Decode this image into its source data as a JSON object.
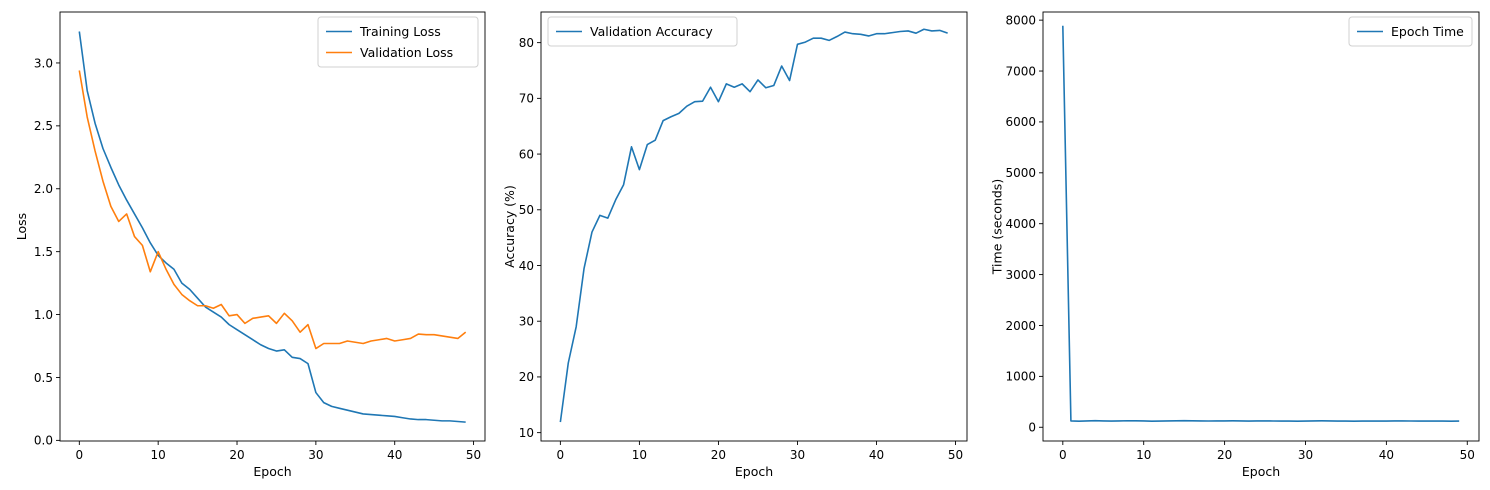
{
  "chart_data": [
    {
      "type": "line",
      "title": "",
      "xlabel": "Epoch",
      "ylabel": "Loss",
      "xlim": [
        -2.45,
        51.45
      ],
      "ylim": [
        -0.005,
        3.405
      ],
      "xticks": [
        0,
        10,
        20,
        30,
        40,
        50
      ],
      "xtick_labels": [
        "0",
        "10",
        "20",
        "30",
        "40",
        "50"
      ],
      "yticks": [
        0.0,
        0.5,
        1.0,
        1.5,
        2.0,
        2.5,
        3.0
      ],
      "ytick_labels": [
        "0.0",
        "0.5",
        "1.0",
        "1.5",
        "2.0",
        "2.5",
        "3.0"
      ],
      "grid": false,
      "legend": "top-right",
      "series": [
        {
          "name": "Training Loss",
          "color": "#1f77b4",
          "x": [
            0,
            1,
            2,
            3,
            4,
            5,
            6,
            7,
            8,
            9,
            10,
            11,
            12,
            13,
            14,
            15,
            16,
            17,
            18,
            19,
            20,
            21,
            22,
            23,
            24,
            25,
            26,
            27,
            28,
            29,
            30,
            31,
            32,
            33,
            34,
            35,
            36,
            37,
            38,
            39,
            40,
            41,
            42,
            43,
            44,
            45,
            46,
            47,
            48,
            49
          ],
          "y": [
            3.25,
            2.78,
            2.52,
            2.32,
            2.17,
            2.03,
            1.91,
            1.8,
            1.69,
            1.57,
            1.47,
            1.41,
            1.36,
            1.25,
            1.2,
            1.13,
            1.06,
            1.02,
            0.98,
            0.92,
            0.88,
            0.84,
            0.8,
            0.76,
            0.73,
            0.71,
            0.72,
            0.66,
            0.65,
            0.61,
            0.38,
            0.3,
            0.27,
            0.255,
            0.24,
            0.225,
            0.21,
            0.205,
            0.2,
            0.195,
            0.19,
            0.18,
            0.17,
            0.165,
            0.165,
            0.16,
            0.155,
            0.155,
            0.15,
            0.145
          ]
        },
        {
          "name": "Validation Loss",
          "color": "#ff7f0e",
          "x": [
            0,
            1,
            2,
            3,
            4,
            5,
            6,
            7,
            8,
            9,
            10,
            11,
            12,
            13,
            14,
            15,
            16,
            17,
            18,
            19,
            20,
            21,
            22,
            23,
            24,
            25,
            26,
            27,
            28,
            29,
            30,
            31,
            32,
            33,
            34,
            35,
            36,
            37,
            38,
            39,
            40,
            41,
            42,
            43,
            44,
            45,
            46,
            47,
            48,
            49
          ],
          "y": [
            2.94,
            2.57,
            2.3,
            2.06,
            1.86,
            1.74,
            1.8,
            1.62,
            1.55,
            1.34,
            1.5,
            1.36,
            1.24,
            1.16,
            1.11,
            1.07,
            1.07,
            1.05,
            1.08,
            0.99,
            1.0,
            0.93,
            0.97,
            0.98,
            0.99,
            0.93,
            1.01,
            0.95,
            0.86,
            0.92,
            0.73,
            0.77,
            0.77,
            0.77,
            0.79,
            0.78,
            0.77,
            0.79,
            0.8,
            0.81,
            0.79,
            0.8,
            0.81,
            0.845,
            0.84,
            0.84,
            0.83,
            0.82,
            0.81,
            0.86
          ]
        }
      ]
    },
    {
      "type": "line",
      "title": "",
      "xlabel": "Epoch",
      "ylabel": "Accuracy (%)",
      "xlim": [
        -2.45,
        51.45
      ],
      "ylim": [
        8.5,
        85.5
      ],
      "xticks": [
        0,
        10,
        20,
        30,
        40,
        50
      ],
      "xtick_labels": [
        "0",
        "10",
        "20",
        "30",
        "40",
        "50"
      ],
      "yticks": [
        10,
        20,
        30,
        40,
        50,
        60,
        70,
        80
      ],
      "ytick_labels": [
        "10",
        "20",
        "30",
        "40",
        "50",
        "60",
        "70",
        "80"
      ],
      "grid": false,
      "legend": "top-left",
      "series": [
        {
          "name": "Validation Accuracy",
          "color": "#1f77b4",
          "x": [
            0,
            1,
            2,
            3,
            4,
            5,
            6,
            7,
            8,
            9,
            10,
            11,
            12,
            13,
            14,
            15,
            16,
            17,
            18,
            19,
            20,
            21,
            22,
            23,
            24,
            25,
            26,
            27,
            28,
            29,
            30,
            31,
            32,
            33,
            34,
            35,
            36,
            37,
            38,
            39,
            40,
            41,
            42,
            43,
            44,
            45,
            46,
            47,
            48,
            49
          ],
          "y": [
            11.9,
            22.5,
            29,
            39.5,
            46,
            49,
            48.5,
            51.8,
            54.5,
            61.3,
            57.2,
            61.7,
            62.5,
            66,
            66.7,
            67.3,
            68.6,
            69.4,
            69.5,
            72,
            69.4,
            72.6,
            72,
            72.6,
            71.2,
            73.3,
            71.9,
            72.3,
            75.8,
            73.2,
            79.7,
            80.1,
            80.8,
            80.8,
            80.4,
            81.1,
            81.9,
            81.6,
            81.5,
            81.2,
            81.6,
            81.6,
            81.8,
            82,
            82.1,
            81.7,
            82.4,
            82.1,
            82.2,
            81.7
          ]
        }
      ]
    },
    {
      "type": "line",
      "title": "",
      "xlabel": "Epoch",
      "ylabel": "Time (seconds)",
      "xlim": [
        -2.45,
        51.45
      ],
      "ylim": [
        -270,
        8160
      ],
      "xticks": [
        0,
        10,
        20,
        30,
        40,
        50
      ],
      "xtick_labels": [
        "0",
        "10",
        "20",
        "30",
        "40",
        "50"
      ],
      "yticks": [
        0,
        1000,
        2000,
        3000,
        4000,
        5000,
        6000,
        7000,
        8000
      ],
      "ytick_labels": [
        "0",
        "1000",
        "2000",
        "3000",
        "4000",
        "5000",
        "6000",
        "7000",
        "8000"
      ],
      "grid": false,
      "legend": "top-right",
      "series": [
        {
          "name": "Epoch Time",
          "color": "#1f77b4",
          "x": [
            0,
            1,
            2,
            3,
            4,
            5,
            6,
            7,
            8,
            9,
            10,
            11,
            12,
            13,
            14,
            15,
            16,
            17,
            18,
            19,
            20,
            21,
            22,
            23,
            24,
            25,
            26,
            27,
            28,
            29,
            30,
            31,
            32,
            33,
            34,
            35,
            36,
            37,
            38,
            39,
            40,
            41,
            42,
            43,
            44,
            45,
            46,
            47,
            48,
            49
          ],
          "y": [
            7890,
            125,
            120,
            125,
            130,
            125,
            122,
            125,
            128,
            126,
            124,
            120,
            122,
            124,
            126,
            130,
            127,
            124,
            123,
            125,
            124,
            126,
            125,
            122,
            124,
            125,
            123,
            122,
            121,
            120,
            121,
            124,
            126,
            125,
            122,
            121,
            120,
            122,
            121,
            122,
            121,
            124,
            125,
            123,
            122,
            121,
            122,
            121,
            120,
            121
          ]
        }
      ]
    }
  ]
}
